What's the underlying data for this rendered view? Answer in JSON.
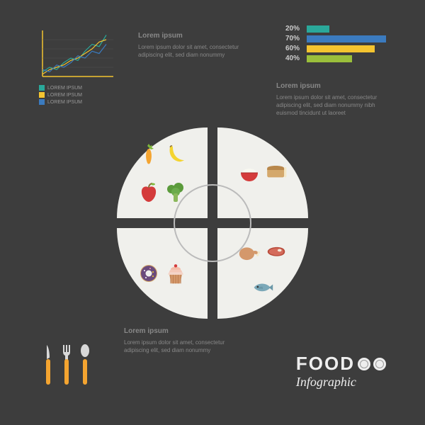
{
  "background_color": "#3d3d3d",
  "line_chart": {
    "type": "line",
    "xlim": [
      0,
      10
    ],
    "ylim": [
      0,
      10
    ],
    "axis_color": "#f4c430",
    "grid_color": "#555",
    "series": [
      {
        "name": "s1",
        "color": "#2aa89a",
        "points": [
          [
            0,
            1
          ],
          [
            1,
            2
          ],
          [
            2,
            1.5
          ],
          [
            3,
            3
          ],
          [
            4,
            4
          ],
          [
            5,
            3.5
          ],
          [
            6,
            5.5
          ],
          [
            7,
            7
          ],
          [
            8,
            6.5
          ],
          [
            9,
            9
          ]
        ]
      },
      {
        "name": "s2",
        "color": "#f4c430",
        "points": [
          [
            0,
            0.5
          ],
          [
            1,
            1.5
          ],
          [
            2,
            2
          ],
          [
            3,
            2.5
          ],
          [
            4,
            3.5
          ],
          [
            5,
            4
          ],
          [
            6,
            5
          ],
          [
            7,
            6
          ],
          [
            8,
            7.5
          ],
          [
            9,
            8
          ]
        ]
      },
      {
        "name": "s3",
        "color": "#3b7bbf",
        "points": [
          [
            0,
            1.5
          ],
          [
            1,
            1
          ],
          [
            2,
            2.5
          ],
          [
            3,
            2
          ],
          [
            4,
            3
          ],
          [
            5,
            4.5
          ],
          [
            6,
            4
          ],
          [
            7,
            5.5
          ],
          [
            8,
            5
          ],
          [
            9,
            7
          ]
        ]
      }
    ],
    "legend_items": [
      {
        "color": "#2aa89a",
        "label": "LOREM IPSUM"
      },
      {
        "color": "#f4c430",
        "label": "LOREM IPSUM"
      },
      {
        "color": "#3b7bbf",
        "label": "LOREM IPSUM"
      }
    ]
  },
  "text_blocks": {
    "t1": {
      "header": "Lorem ipsum",
      "body": "Lorem ipsum dolor sit amet, consectetur adipiscing elit, sed diam nonummy"
    },
    "t2": {
      "header": "Lorem ipsum",
      "body": "Lorem ipsum dolor sit amet, consectetur adipiscing elit, sed diam nonummy nibh euismod tincidunt ut laoreet"
    },
    "t3": {
      "header": "Lorem ipsum",
      "body": "Lorem ipsum dolor sit amet, consectetur adipiscing elit, sed diam nonummy"
    }
  },
  "bar_chart": {
    "type": "bar",
    "max": 100,
    "bars": [
      {
        "label": "20%",
        "value": 20,
        "color": "#2aa89a"
      },
      {
        "label": "70%",
        "value": 70,
        "color": "#3b7bbf"
      },
      {
        "label": "60%",
        "value": 60,
        "color": "#f4c430"
      },
      {
        "label": "40%",
        "value": 40,
        "color": "#9bbf3b"
      }
    ]
  },
  "plate": {
    "quad_bg": "#f0f0ec",
    "ring_color": "#bbbbbb",
    "foods": {
      "q1": [
        "carrot",
        "banana",
        "apple",
        "broccoli"
      ],
      "q2": [
        "rice-bowl",
        "bread"
      ],
      "q3": [
        "donut",
        "cupcake"
      ],
      "q4": [
        "chicken",
        "steak",
        "fish"
      ]
    }
  },
  "cutlery": {
    "handle_color": "#f4a430",
    "metal_color": "#d8d8d8",
    "items": [
      "knife",
      "fork",
      "spoon"
    ]
  },
  "logo": {
    "line1": "FOOD",
    "line2": "Infographic",
    "plate_color": "#eeeeee"
  }
}
